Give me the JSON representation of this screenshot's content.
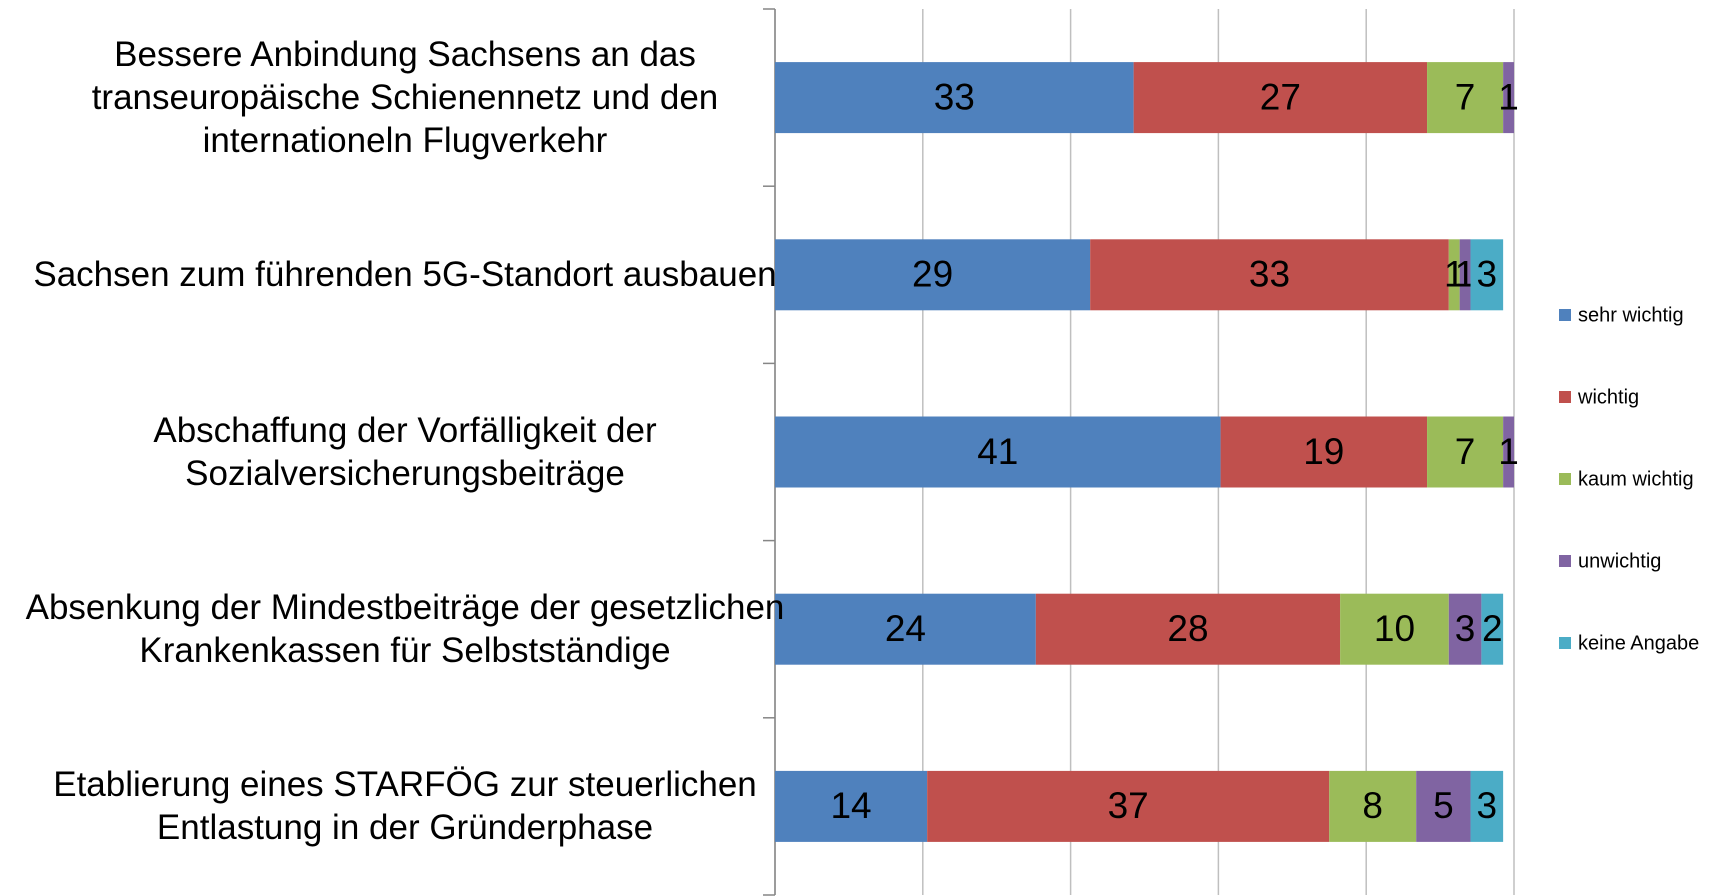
{
  "chart_data": {
    "type": "stacked-bar-horizontal",
    "categories": [
      "Bessere Anbindung Sachsens an das transeuropäische Schienennetz und den internationeln Flugverkehr",
      "Sachsen zum führenden 5G-Standort ausbauen",
      "Abschaffung der Vorfälligkeit der Sozialversicherungsbeiträge",
      "Absenkung der Mindestbeiträge der gesetzlichen Krankenkassen für Selbstständige",
      "Etablierung eines STARFÖG zur steuerlichen Entlastung in der Gründerphase"
    ],
    "series": [
      {
        "name": "sehr wichtig",
        "color": "#4f81bd",
        "values": [
          33,
          29,
          41,
          24,
          14
        ]
      },
      {
        "name": "wichtig",
        "color": "#c0504d",
        "values": [
          27,
          33,
          19,
          28,
          37
        ]
      },
      {
        "name": "kaum wichtig",
        "color": "#9bbb59",
        "values": [
          7,
          1,
          7,
          10,
          8
        ]
      },
      {
        "name": "unwichtig",
        "color": "#8064a2",
        "values": [
          1,
          1,
          1,
          3,
          5
        ]
      },
      {
        "name": "keine Angabe",
        "color": "#4bacc6",
        "values": [
          null,
          3,
          null,
          2,
          3
        ]
      }
    ],
    "xlim": [
      0,
      68
    ],
    "xticks": [
      0,
      13.6,
      27.2,
      40.8,
      54.4,
      68
    ],
    "grid": true,
    "legend": "right"
  }
}
